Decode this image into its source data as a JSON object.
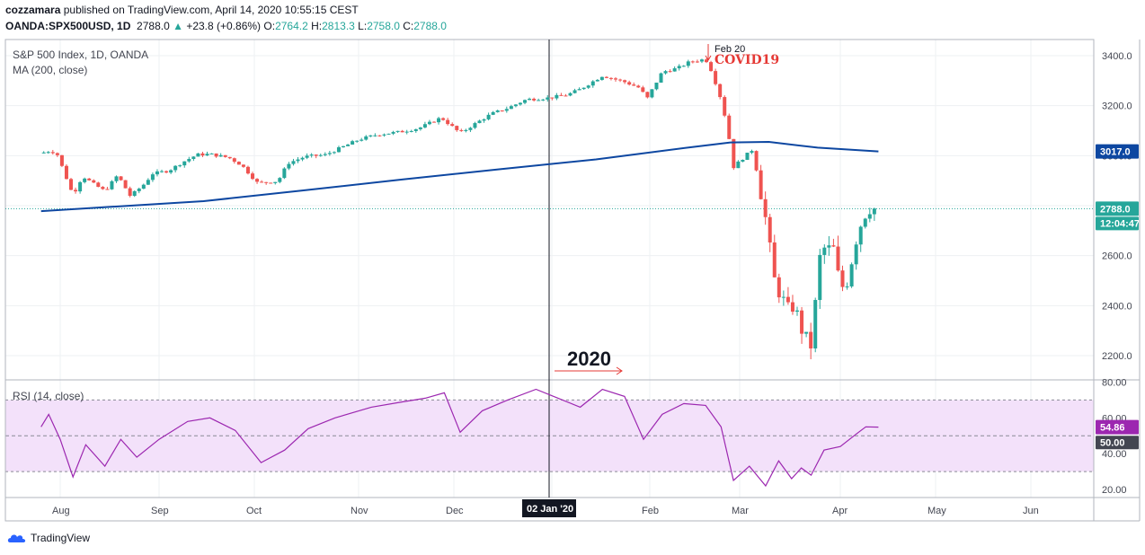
{
  "header": {
    "publisher": "cozzamara",
    "published_text": "published on TradingView.com, April 14, 2020 10:55:15 CEST",
    "symbol": "OANDA:SPX500USD, 1D",
    "last": "2788.0",
    "change": "+23.8 (+0.86%)",
    "o_label": "O:",
    "o": "2764.2",
    "h_label": "H:",
    "h": "2813.3",
    "l_label": "L:",
    "l": "2758.0",
    "c_label": "C:",
    "c": "2788.0"
  },
  "panes": {
    "main_title": "S&P 500 Index, 1D, OANDA",
    "ma_title": "MA (200, close)",
    "rsi_title": "RSI (14, close)"
  },
  "annotations": {
    "feb20": "Feb 20",
    "covid": "COVID19",
    "year": "2020"
  },
  "price_badges": {
    "ma": "3017.0",
    "last": "2788.0",
    "countdown": "12:04:47",
    "rsi": "54.86",
    "rsi_mid": "50.00"
  },
  "crosshair_date": "02 Jan '20",
  "brand": "TradingView",
  "colors": {
    "up": "#26a69a",
    "down": "#ef5350",
    "ma": "#0d47a1",
    "rsi": "#9c27b0",
    "covid": "#e53935",
    "year_arrow": "#e53935"
  },
  "chart_data": [
    {
      "type": "candlestick",
      "title": "S&P 500 Index, 1D, OANDA",
      "x_ticks": [
        "Aug",
        "Sep",
        "Oct",
        "Nov",
        "Dec",
        "Jan",
        "Feb",
        "Mar",
        "Apr",
        "May",
        "Jun"
      ],
      "y_ticks": [
        2200,
        2400,
        2600,
        2800,
        3000,
        3200,
        3400
      ],
      "ylim": [
        2150,
        3450
      ],
      "series_close_points": [
        [
          "Jul 22",
          3010
        ],
        [
          "Jul 26",
          3018
        ],
        [
          "Jul 30",
          3013
        ],
        [
          "Aug 1",
          2975
        ],
        [
          "Aug 5",
          2842
        ],
        [
          "Aug 8",
          2918
        ],
        [
          "Aug 12",
          2882
        ],
        [
          "Aug 15",
          2858
        ],
        [
          "Aug 19",
          2922
        ],
        [
          "Aug 23",
          2838
        ],
        [
          "Aug 27",
          2882
        ],
        [
          "Aug 30",
          2928
        ],
        [
          "Sep 4",
          2940
        ],
        [
          "Sep 9",
          2978
        ],
        [
          "Sep 13",
          3004
        ],
        [
          "Sep 17",
          3006
        ],
        [
          "Sep 23",
          2992
        ],
        [
          "Sep 27",
          2962
        ],
        [
          "Oct 2",
          2890
        ],
        [
          "Oct 8",
          2898
        ],
        [
          "Oct 11",
          2970
        ],
        [
          "Oct 16",
          2996
        ],
        [
          "Oct 22",
          3003
        ],
        [
          "Oct 28",
          3039
        ],
        [
          "Nov 1",
          3064
        ],
        [
          "Nov 7",
          3085
        ],
        [
          "Nov 14",
          3095
        ],
        [
          "Nov 20",
          3110
        ],
        [
          "Nov 27",
          3152
        ],
        [
          "Dec 3",
          3090
        ],
        [
          "Dec 9",
          3138
        ],
        [
          "Dec 13",
          3168
        ],
        [
          "Dec 18",
          3190
        ],
        [
          "Dec 24",
          3225
        ],
        [
          "Dec 31",
          3231
        ],
        [
          "Jan 6",
          3244
        ],
        [
          "Jan 10",
          3266
        ],
        [
          "Jan 17",
          3320
        ],
        [
          "Jan 24",
          3295
        ],
        [
          "Jan 29",
          3270
        ],
        [
          "Jan 31",
          3225
        ],
        [
          "Feb 5",
          3335
        ],
        [
          "Feb 10",
          3350
        ],
        [
          "Feb 14",
          3376
        ],
        [
          "Feb 19",
          3386
        ],
        [
          "Feb 21",
          3337
        ],
        [
          "Feb 24",
          3225
        ],
        [
          "Feb 26",
          3116
        ],
        [
          "Feb 28",
          2954
        ],
        [
          "Mar 3",
          3002
        ],
        [
          "Mar 5",
          3025
        ],
        [
          "Mar 9",
          2746
        ],
        [
          "Mar 12",
          2480
        ],
        [
          "Mar 16",
          2386
        ],
        [
          "Mar 18",
          2398
        ],
        [
          "Mar 20",
          2304
        ],
        [
          "Mar 23",
          2237
        ],
        [
          "Mar 26",
          2630
        ],
        [
          "Mar 30",
          2626
        ],
        [
          "Apr 1",
          2470
        ],
        [
          "Apr 3",
          2488
        ],
        [
          "Apr 6",
          2663
        ],
        [
          "Apr 8",
          2749
        ],
        [
          "Apr 10",
          2788
        ],
        [
          "Apr 13",
          2788
        ]
      ]
    },
    {
      "type": "line",
      "title": "MA (200, close)",
      "series": [
        {
          "name": "MA (200, close)",
          "points": [
            [
              "Jul 22",
              2778
            ],
            [
              "Sep 15",
              2818
            ],
            [
              "Oct 15",
              2860
            ],
            [
              "Nov 15",
              2905
            ],
            [
              "Dec 15",
              2945
            ],
            [
              "Jan 15",
              2985
            ],
            [
              "Feb 15",
              3035
            ],
            [
              "Feb 27",
              3053
            ],
            [
              "Mar 10",
              3055
            ],
            [
              "Mar 25",
              3032
            ],
            [
              "Apr 13",
              3017
            ]
          ]
        }
      ]
    },
    {
      "type": "line",
      "title": "RSI (14, close)",
      "y_ticks": [
        20,
        40,
        60,
        80
      ],
      "ylim": [
        15,
        85
      ],
      "bands": [
        30,
        50,
        70
      ],
      "series": [
        {
          "name": "RSI (14, close)",
          "points": [
            [
              "Jul 22",
              55
            ],
            [
              "Jul 26",
              62
            ],
            [
              "Aug 1",
              48
            ],
            [
              "Aug 5",
              27
            ],
            [
              "Aug 9",
              45
            ],
            [
              "Aug 15",
              33
            ],
            [
              "Aug 20",
              48
            ],
            [
              "Aug 25",
              38
            ],
            [
              "Sep 1",
              48
            ],
            [
              "Sep 10",
              58
            ],
            [
              "Sep 17",
              60
            ],
            [
              "Sep 25",
              53
            ],
            [
              "Oct 3",
              35
            ],
            [
              "Oct 10",
              42
            ],
            [
              "Oct 17",
              54
            ],
            [
              "Oct 25",
              60
            ],
            [
              "Nov 5",
              66
            ],
            [
              "Nov 15",
              69
            ],
            [
              "Nov 22",
              71
            ],
            [
              "Nov 28",
              74
            ],
            [
              "Dec 3",
              52
            ],
            [
              "Dec 10",
              64
            ],
            [
              "Dec 18",
              70
            ],
            [
              "Dec 27",
              76
            ],
            [
              "Jan 3",
              71
            ],
            [
              "Jan 10",
              66
            ],
            [
              "Jan 17",
              76
            ],
            [
              "Jan 24",
              72
            ],
            [
              "Jan 30",
              48
            ],
            [
              "Feb 5",
              62
            ],
            [
              "Feb 12",
              68
            ],
            [
              "Feb 19",
              67
            ],
            [
              "Feb 24",
              55
            ],
            [
              "Feb 28",
              25
            ],
            [
              "Mar 4",
              33
            ],
            [
              "Mar 9",
              22
            ],
            [
              "Mar 13",
              36
            ],
            [
              "Mar 17",
              26
            ],
            [
              "Mar 20",
              32
            ],
            [
              "Mar 23",
              28
            ],
            [
              "Mar 27",
              42
            ],
            [
              "Apr 1",
              44
            ],
            [
              "Apr 6",
              51
            ],
            [
              "Apr 9",
              55
            ],
            [
              "Apr 13",
              54.86
            ]
          ]
        }
      ]
    }
  ]
}
